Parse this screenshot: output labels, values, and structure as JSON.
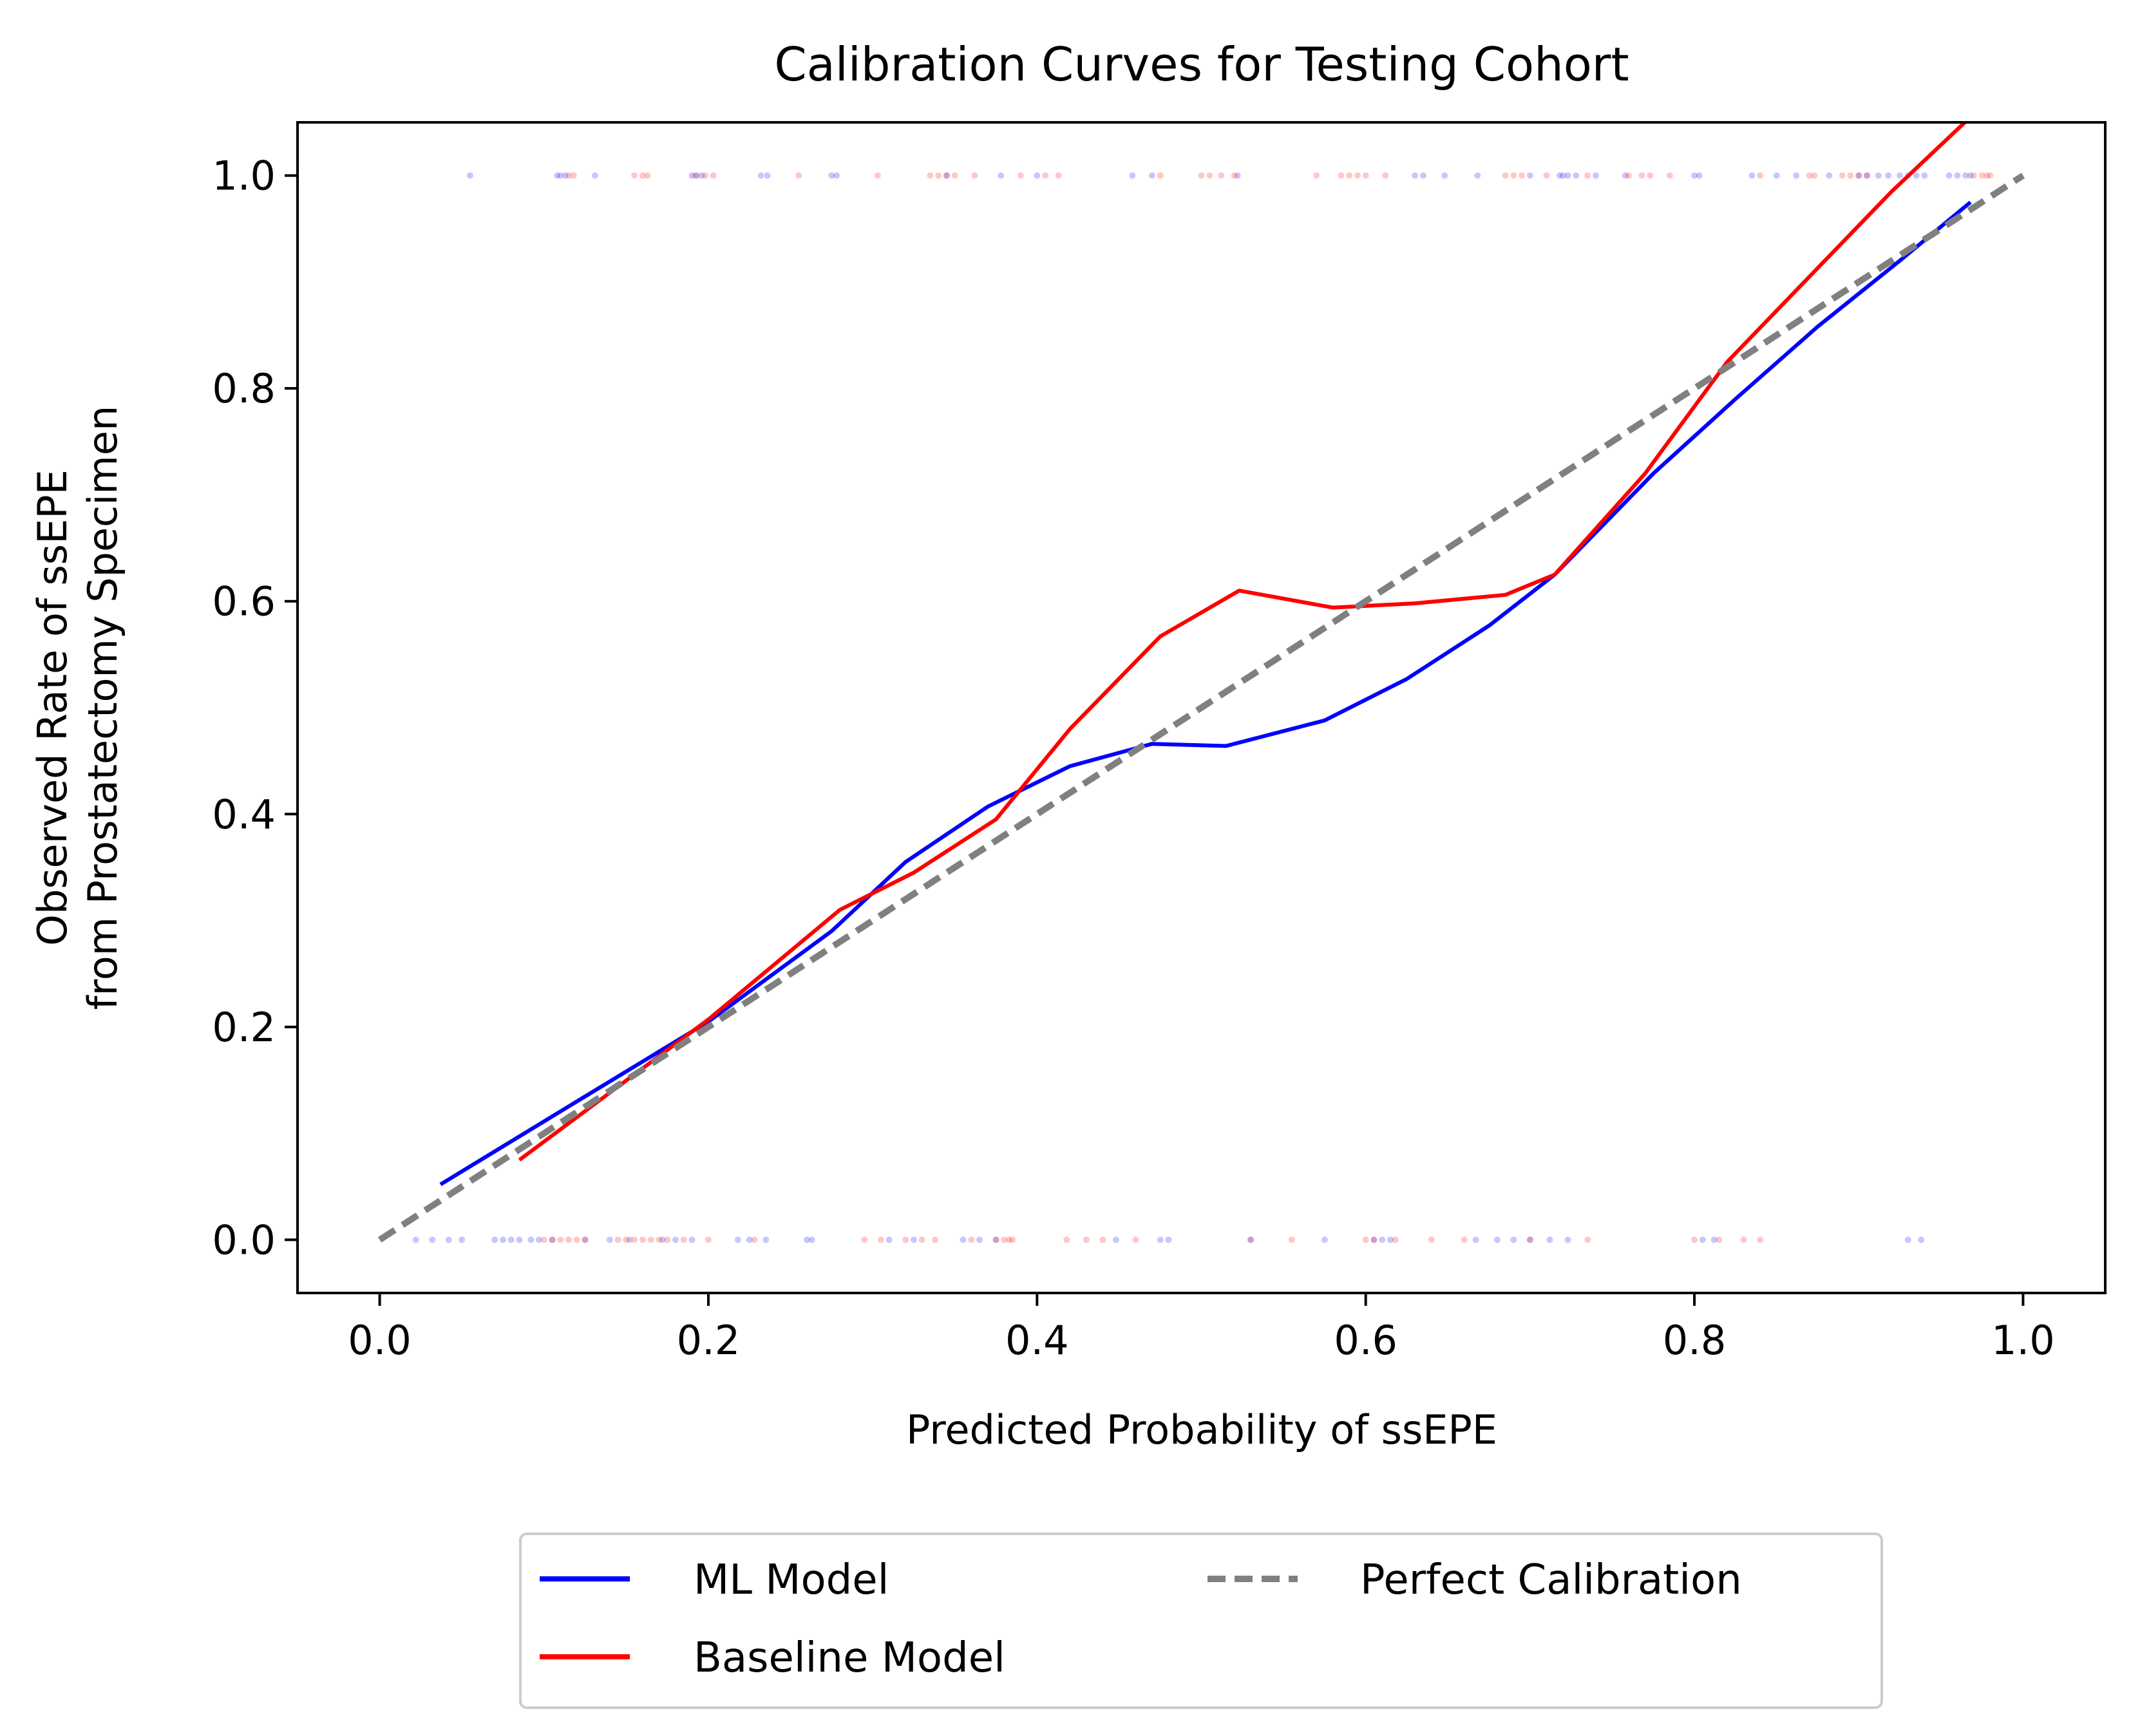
{
  "chart_data": {
    "type": "line",
    "title": "Calibration Curves for Testing Cohort",
    "xlabel": "Predicted Probability of ssEPE",
    "ylabel_lines": [
      "Observed Rate of ssEPE",
      "from Prostatectomy Specimen"
    ],
    "xlim": [
      -0.05,
      1.05
    ],
    "ylim": [
      -0.05,
      1.05
    ],
    "xticks": [
      0.0,
      0.2,
      0.4,
      0.6,
      0.8,
      1.0
    ],
    "yticks": [
      0.0,
      0.2,
      0.4,
      0.6,
      0.8,
      1.0
    ],
    "xtick_labels": [
      "0.0",
      "0.2",
      "0.4",
      "0.6",
      "0.8",
      "1.0"
    ],
    "ytick_labels": [
      "0.0",
      "0.2",
      "0.4",
      "0.6",
      "0.8",
      "1.0"
    ],
    "grid": false,
    "legend_position": "below plot, centered, two columns",
    "series": [
      {
        "name": "ML Model",
        "color": "#0000ff",
        "style": "solid",
        "x": [
          0.037,
          0.12,
          0.2,
          0.275,
          0.32,
          0.37,
          0.42,
          0.47,
          0.515,
          0.575,
          0.625,
          0.675,
          0.715,
          0.775,
          0.825,
          0.875,
          0.925,
          0.968
        ],
        "y": [
          0.052,
          0.13,
          0.205,
          0.29,
          0.355,
          0.407,
          0.445,
          0.466,
          0.464,
          0.488,
          0.527,
          0.577,
          0.625,
          0.72,
          0.79,
          0.858,
          0.92,
          0.975
        ]
      },
      {
        "name": "Baseline Model",
        "color": "#ff0000",
        "style": "solid",
        "x": [
          0.085,
          0.2,
          0.28,
          0.325,
          0.375,
          0.42,
          0.475,
          0.523,
          0.58,
          0.63,
          0.685,
          0.715,
          0.77,
          0.82,
          0.87,
          0.92,
          0.968
        ],
        "y": [
          0.075,
          0.207,
          0.31,
          0.345,
          0.395,
          0.48,
          0.567,
          0.61,
          0.594,
          0.598,
          0.606,
          0.625,
          0.72,
          0.825,
          0.905,
          0.985,
          1.055
        ]
      },
      {
        "name": "Perfect Calibration",
        "color": "#808080",
        "style": "dashed",
        "x": [
          0.0,
          1.0
        ],
        "y": [
          0.0,
          1.0
        ]
      }
    ],
    "observations": {
      "ml_model_y1": [
        0.055,
        0.108,
        0.11,
        0.113,
        0.131,
        0.19,
        0.193,
        0.196,
        0.232,
        0.236,
        0.275,
        0.278,
        0.345,
        0.378,
        0.4,
        0.458,
        0.47,
        0.522,
        0.63,
        0.635,
        0.648,
        0.668,
        0.7,
        0.718,
        0.72,
        0.723,
        0.728,
        0.74,
        0.758,
        0.8,
        0.803,
        0.835,
        0.85,
        0.862,
        0.882,
        0.9,
        0.905,
        0.912,
        0.918,
        0.925,
        0.93,
        0.935,
        0.94,
        0.955,
        0.96,
        0.965,
        0.968
      ],
      "baseline_model_y1": [
        0.115,
        0.118,
        0.155,
        0.16,
        0.163,
        0.192,
        0.198,
        0.203,
        0.255,
        0.303,
        0.335,
        0.34,
        0.345,
        0.35,
        0.362,
        0.39,
        0.405,
        0.413,
        0.475,
        0.5,
        0.505,
        0.512,
        0.52,
        0.57,
        0.585,
        0.59,
        0.595,
        0.6,
        0.612,
        0.685,
        0.69,
        0.695,
        0.71,
        0.735,
        0.76,
        0.768,
        0.773,
        0.785,
        0.84,
        0.87,
        0.873,
        0.89,
        0.895,
        0.9,
        0.905,
        0.97,
        0.975,
        0.978,
        0.98
      ],
      "ml_model_y0": [
        0.022,
        0.032,
        0.042,
        0.05,
        0.07,
        0.075,
        0.08,
        0.085,
        0.092,
        0.097,
        0.105,
        0.125,
        0.14,
        0.152,
        0.172,
        0.18,
        0.19,
        0.218,
        0.225,
        0.235,
        0.26,
        0.263,
        0.31,
        0.325,
        0.355,
        0.365,
        0.375,
        0.448,
        0.475,
        0.48,
        0.53,
        0.575,
        0.605,
        0.61,
        0.615,
        0.667,
        0.68,
        0.69,
        0.7,
        0.712,
        0.723,
        0.805,
        0.812,
        0.93,
        0.938
      ],
      "baseline_model_y0": [
        0.1,
        0.105,
        0.11,
        0.115,
        0.12,
        0.125,
        0.145,
        0.15,
        0.155,
        0.16,
        0.165,
        0.17,
        0.175,
        0.185,
        0.2,
        0.228,
        0.295,
        0.305,
        0.32,
        0.33,
        0.338,
        0.36,
        0.375,
        0.38,
        0.383,
        0.385,
        0.418,
        0.43,
        0.44,
        0.46,
        0.53,
        0.555,
        0.6,
        0.605,
        0.618,
        0.64,
        0.66,
        0.7,
        0.735,
        0.8,
        0.815,
        0.83,
        0.84
      ]
    }
  },
  "legend": {
    "items": [
      {
        "label": "ML Model",
        "color": "#0000ff",
        "style": "solid"
      },
      {
        "label": "Baseline Model",
        "color": "#ff0000",
        "style": "solid"
      },
      {
        "label": "Perfect Calibration",
        "color": "#808080",
        "style": "dashed"
      }
    ]
  }
}
